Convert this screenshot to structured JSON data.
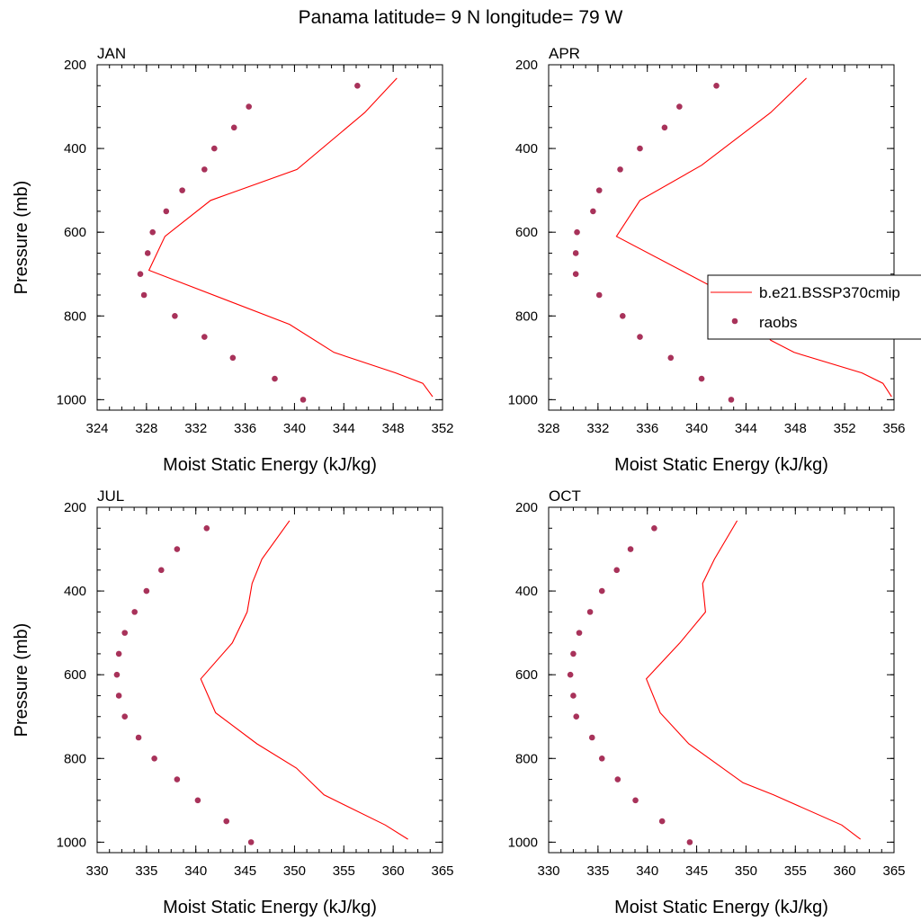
{
  "figure": {
    "title": "Panama  latitude= 9 N longitude= 79 W"
  },
  "colors": {
    "model": "#ff0000",
    "obs": "#a8325a",
    "axis": "#000000"
  },
  "legend": {
    "placement": "right of APR panel",
    "entries": [
      {
        "label": "b.e21.BSSP370cmip",
        "marker": "line"
      },
      {
        "label": "raobs",
        "marker": "dot"
      }
    ]
  },
  "chart_data": [
    {
      "type": "line",
      "panel_label": "JAN",
      "xlabel": "Moist Static Energy (kJ/kg)",
      "ylabel": "Pressure (mb)",
      "xlim": [
        324,
        352
      ],
      "ylim": [
        1025,
        200
      ],
      "xticks": [
        324,
        328,
        332,
        336,
        340,
        344,
        348,
        352
      ],
      "yticks": [
        200,
        400,
        600,
        800,
        1000
      ],
      "grid": false,
      "series": [
        {
          "kind": "model-line",
          "x": [
            348.3,
            345.7,
            340.2,
            333.2,
            329.5,
            328.2,
            339.6,
            343.2,
            348.2,
            350.4,
            351.2
          ],
          "y": [
            232,
            314,
            450,
            524,
            610,
            691,
            820,
            887,
            936,
            961,
            993
          ]
        },
        {
          "kind": "obs-points",
          "x": [
            345.1,
            336.3,
            335.1,
            333.5,
            332.7,
            330.9,
            329.6,
            328.5,
            328.1,
            327.5,
            327.8,
            330.3,
            332.7,
            335.0,
            338.4,
            340.7
          ],
          "y": [
            250,
            300,
            350,
            400,
            450,
            500,
            550,
            600,
            650,
            700,
            750,
            800,
            850,
            900,
            950,
            1000
          ]
        }
      ]
    },
    {
      "type": "line",
      "panel_label": "APR",
      "xlabel": "Moist Static Energy (kJ/kg)",
      "ylabel": "",
      "xlim": [
        328,
        356
      ],
      "ylim": [
        1025,
        200
      ],
      "xticks": [
        328,
        332,
        336,
        340,
        344,
        348,
        352,
        356
      ],
      "yticks": [
        200,
        400,
        600,
        800,
        1000
      ],
      "grid": false,
      "series": [
        {
          "kind": "model-line",
          "x": [
            348.9,
            346.0,
            340.4,
            335.4,
            333.5,
            343.5,
            346.0,
            347.9,
            353.4,
            355.1,
            355.8
          ],
          "y": [
            232,
            314,
            440,
            524,
            610,
            765,
            858,
            887,
            936,
            961,
            993
          ]
        },
        {
          "kind": "obs-points",
          "x": [
            341.6,
            338.6,
            337.4,
            335.4,
            333.8,
            332.1,
            331.6,
            330.3,
            330.2,
            330.2,
            332.1,
            334.0,
            335.4,
            337.9,
            340.4,
            342.8
          ],
          "y": [
            250,
            300,
            350,
            400,
            450,
            500,
            550,
            600,
            650,
            700,
            750,
            800,
            850,
            900,
            950,
            1000
          ]
        }
      ]
    },
    {
      "type": "line",
      "panel_label": "JUL",
      "xlabel": "Moist Static Energy (kJ/kg)",
      "ylabel": "Pressure (mb)",
      "xlim": [
        330,
        365
      ],
      "ylim": [
        1025,
        200
      ],
      "xticks": [
        330,
        335,
        340,
        345,
        350,
        355,
        360,
        365
      ],
      "yticks": [
        200,
        400,
        600,
        800,
        1000
      ],
      "grid": false,
      "series": [
        {
          "kind": "model-line",
          "x": [
            349.5,
            346.7,
            345.7,
            345.2,
            343.7,
            340.5,
            342.0,
            346.2,
            350.2,
            353.0,
            359.2,
            361.5
          ],
          "y": [
            232,
            324,
            382,
            450,
            524,
            610,
            691,
            765,
            823,
            887,
            959,
            993
          ]
        },
        {
          "kind": "obs-points",
          "x": [
            341.1,
            338.1,
            336.5,
            335.0,
            333.8,
            332.8,
            332.2,
            332.0,
            332.2,
            332.8,
            334.2,
            335.8,
            338.1,
            340.2,
            343.1,
            345.6
          ],
          "y": [
            250,
            300,
            350,
            400,
            450,
            500,
            550,
            600,
            650,
            700,
            750,
            800,
            850,
            900,
            950,
            1000
          ]
        }
      ]
    },
    {
      "type": "line",
      "panel_label": "OCT",
      "xlabel": "Moist Static Energy (kJ/kg)",
      "ylabel": "",
      "xlim": [
        330,
        365
      ],
      "ylim": [
        1025,
        200
      ],
      "xticks": [
        330,
        335,
        340,
        345,
        350,
        355,
        360,
        365
      ],
      "yticks": [
        200,
        400,
        600,
        800,
        1000
      ],
      "grid": false,
      "series": [
        {
          "kind": "model-line",
          "x": [
            349.1,
            346.8,
            345.6,
            345.9,
            343.3,
            339.9,
            341.3,
            344.2,
            349.7,
            352.8,
            359.7,
            361.6
          ],
          "y": [
            232,
            324,
            382,
            450,
            524,
            610,
            691,
            765,
            858,
            887,
            959,
            993
          ]
        },
        {
          "kind": "obs-points",
          "x": [
            340.7,
            338.3,
            336.9,
            335.4,
            334.2,
            333.1,
            332.5,
            332.2,
            332.5,
            332.8,
            334.4,
            335.4,
            337.0,
            338.8,
            341.5,
            344.3
          ],
          "y": [
            250,
            300,
            350,
            400,
            450,
            500,
            550,
            600,
            650,
            700,
            750,
            800,
            850,
            900,
            950,
            1000
          ]
        }
      ]
    }
  ]
}
